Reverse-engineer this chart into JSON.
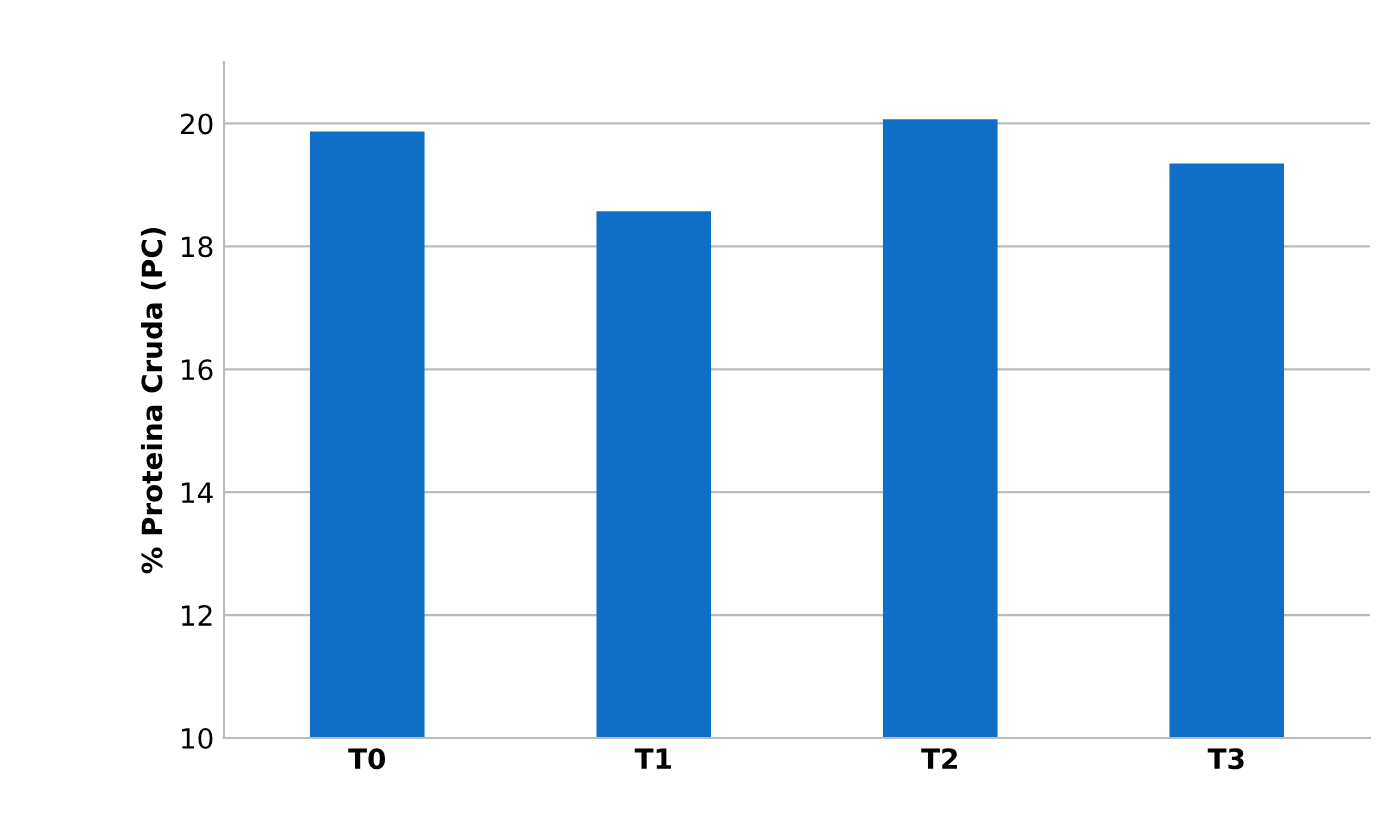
{
  "chart_data": {
    "type": "bar",
    "ylabel": "% Proteina Cruda (PC)",
    "categories": [
      "T0",
      "T1",
      "T2",
      "T3"
    ],
    "values": [
      19.87,
      18.57,
      20.07,
      19.35
    ],
    "color": "#0f6fc6",
    "ylim": [
      10,
      21
    ],
    "yticks": [
      10,
      12,
      14,
      16,
      18,
      20
    ],
    "grid": "y"
  }
}
